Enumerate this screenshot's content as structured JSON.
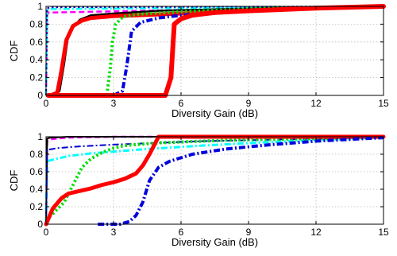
{
  "chart_data": [
    {
      "type": "line",
      "xlabel": "Diversity Gain (dB)",
      "ylabel": "CDF",
      "xlim": [
        0,
        15
      ],
      "ylim": [
        0,
        1
      ],
      "x_ticks": [
        "0",
        "3",
        "6",
        "9",
        "12",
        "15"
      ],
      "y_ticks": [
        "0",
        "0.2",
        "0.4",
        "0.6",
        "0.8",
        "1"
      ],
      "grid": true,
      "series": [
        {
          "color": "#ff00ff",
          "style": "dash",
          "width": 2.5,
          "x": [
            0,
            0.05,
            0.1,
            15
          ],
          "y": [
            0,
            0.9,
            0.93,
            1.0
          ]
        },
        {
          "color": "#00ffff",
          "style": "dashdot",
          "width": 2.5,
          "x": [
            0,
            0.05,
            0.1,
            15
          ],
          "y": [
            0,
            0.95,
            0.97,
            1.0
          ]
        },
        {
          "color": "#0000cc",
          "style": "dot",
          "width": 2,
          "x": [
            0,
            0.05,
            0.3,
            15
          ],
          "y": [
            0,
            0.98,
            0.99,
            1.0
          ]
        },
        {
          "color": "#000000",
          "style": "solid",
          "width": 2.5,
          "x": [
            0.3,
            0.6,
            0.8,
            1.0,
            1.5,
            2.0,
            3.0,
            5.0,
            8.0,
            12.0,
            15.0
          ],
          "y": [
            0.0,
            0.05,
            0.35,
            0.7,
            0.85,
            0.9,
            0.92,
            0.95,
            0.97,
            0.99,
            1.0
          ]
        },
        {
          "color": "#ff0000",
          "style": "solid",
          "width": 5,
          "x": [
            0.2,
            0.5,
            0.7,
            0.9,
            1.2,
            1.6,
            2.0,
            3.0,
            4.0,
            6.0,
            9.0,
            12.0,
            15.0
          ],
          "y": [
            0.0,
            0.03,
            0.3,
            0.62,
            0.78,
            0.84,
            0.87,
            0.89,
            0.9,
            0.92,
            0.95,
            0.98,
            1.0
          ]
        },
        {
          "color": "#00dd00",
          "style": "dot",
          "width": 4,
          "x": [
            0,
            2.7,
            2.85,
            2.95,
            3.1,
            3.4,
            4.0,
            6.0,
            10.0,
            15.0
          ],
          "y": [
            0.0,
            0.0,
            0.3,
            0.6,
            0.8,
            0.88,
            0.91,
            0.94,
            0.98,
            1.0
          ]
        },
        {
          "color": "#0000dd",
          "style": "dashdot",
          "width": 4,
          "x": [
            3.0,
            3.4,
            3.6,
            3.8,
            4.2,
            5.0,
            6.0,
            8.0,
            11.0,
            15.0
          ],
          "y": [
            0.0,
            0.05,
            0.35,
            0.72,
            0.82,
            0.87,
            0.9,
            0.93,
            0.97,
            1.0
          ]
        },
        {
          "color": "#ff0000",
          "style": "solid",
          "width": 6,
          "x": [
            0.1,
            5.3,
            5.55,
            5.7,
            6.0,
            6.5,
            7.5,
            9.0,
            12.0,
            15.0
          ],
          "y": [
            0.0,
            0.0,
            0.2,
            0.8,
            0.86,
            0.9,
            0.93,
            0.95,
            0.98,
            1.0
          ]
        }
      ]
    },
    {
      "type": "line",
      "xlabel": "Diversity Gain (dB)",
      "ylabel": "CDF",
      "xlim": [
        0,
        15
      ],
      "ylim": [
        0,
        1
      ],
      "x_ticks": [
        "0",
        "3",
        "6",
        "9",
        "12",
        "15"
      ],
      "y_ticks": [
        "0",
        "0.2",
        "0.4",
        "0.6",
        "0.8",
        "1"
      ],
      "grid": true,
      "series": [
        {
          "color": "#ff00ff",
          "style": "dash",
          "width": 2.5,
          "x": [
            0,
            0.05,
            0.2,
            0.5,
            1.0,
            3.0,
            6.0,
            15.0
          ],
          "y": [
            0.0,
            0.95,
            0.97,
            0.98,
            0.99,
            1.0,
            1.0,
            1.0
          ]
        },
        {
          "color": "#000000",
          "style": "solid",
          "width": 2,
          "x": [
            0,
            0.05,
            0.2,
            1.0,
            15.0
          ],
          "y": [
            0.0,
            0.98,
            0.99,
            1.0,
            1.0
          ]
        },
        {
          "color": "#00ffff",
          "style": "dashdot",
          "width": 3,
          "x": [
            0,
            0.05,
            0.5,
            1.0,
            2.0,
            3.0,
            4.5,
            7.0,
            10.0,
            13.0,
            15.0
          ],
          "y": [
            0.0,
            0.72,
            0.75,
            0.78,
            0.81,
            0.83,
            0.86,
            0.9,
            0.94,
            0.97,
            0.99
          ]
        },
        {
          "color": "#0000cc",
          "style": "dashdot",
          "width": 2,
          "x": [
            0,
            0.05,
            0.5,
            1.5,
            3.0,
            5.0,
            7.0,
            9.0,
            12.0,
            15.0
          ],
          "y": [
            0.0,
            0.85,
            0.87,
            0.89,
            0.91,
            0.93,
            0.95,
            0.96,
            0.98,
            0.99
          ]
        },
        {
          "color": "#00dd00",
          "style": "dot",
          "width": 4,
          "x": [
            0.0,
            0.3,
            0.8,
            1.2,
            1.6,
            2.0,
            2.5,
            3.0,
            3.5,
            5.0,
            8.0,
            12.0,
            15.0
          ],
          "y": [
            0.05,
            0.12,
            0.25,
            0.45,
            0.65,
            0.75,
            0.82,
            0.87,
            0.9,
            0.93,
            0.96,
            0.98,
            1.0
          ]
        },
        {
          "color": "#ff0000",
          "style": "solid",
          "width": 5,
          "x": [
            0.0,
            0.3,
            0.7,
            1.0,
            1.5,
            2.0,
            2.5,
            3.0,
            3.5,
            4.0,
            4.3,
            4.6,
            4.8,
            5.0,
            6.0,
            9.0,
            15.0
          ],
          "y": [
            0.0,
            0.18,
            0.3,
            0.35,
            0.38,
            0.41,
            0.45,
            0.48,
            0.52,
            0.58,
            0.67,
            0.8,
            0.9,
            1.0,
            1.0,
            1.0,
            1.0
          ]
        },
        {
          "color": "#0000dd",
          "style": "dashdot",
          "width": 4,
          "x": [
            2.3,
            2.6,
            3.0,
            3.3,
            3.7,
            4.0,
            4.3,
            4.6,
            5.0,
            5.5,
            6.5,
            8.0,
            10.0,
            12.0,
            15.0
          ],
          "y": [
            0.0,
            0.0,
            0.0,
            0.0,
            0.03,
            0.1,
            0.25,
            0.5,
            0.65,
            0.72,
            0.8,
            0.86,
            0.91,
            0.95,
            0.99
          ]
        }
      ]
    }
  ]
}
